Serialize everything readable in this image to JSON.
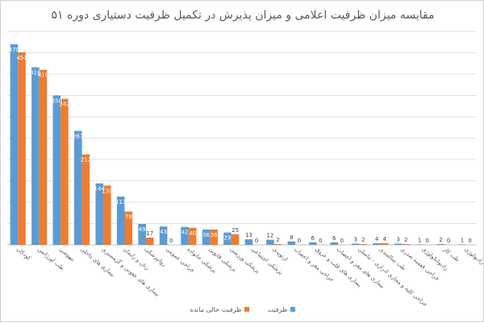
{
  "chart_data": {
    "type": "bar",
    "title": "مقایسه میزان ظرفیت اعلامی و میزان پذیرش در تکمیل ظرفیت دستیاری دوره ۵۱",
    "categories": [
      "کودکان",
      "طب اورژانس",
      "بیهوشی",
      "بیماری های داخلی",
      "بیماری های عفونی و گرمسیری",
      "زنان و زایمان",
      "روانپزشکی",
      "جراحی عمومی",
      "پزشکی خانواده",
      "پزشکی قانونی",
      "پزشکی ورزشی",
      "پزشکی اجتماعی",
      "ارتوپدی",
      "جراحی مغز و اعصاب",
      "بیماری های قلب و عروق",
      "بیماری های مغز و اعصاب",
      "جراحی کلیه و مجاری ادراری - تناسلی",
      "طب سالمندی",
      "جراحی قفسه صدری",
      "رادیوانکولوژی",
      "طب کار",
      "رادیولوژی"
    ],
    "series": [
      {
        "name": "ظرفیت",
        "color": "#5b9bd5",
        "values": [
          470,
          416,
          350,
          267,
          144,
          113,
          49,
          43,
          42,
          36,
          29,
          13,
          12,
          8,
          6,
          6,
          3,
          4,
          3,
          1,
          2,
          1
        ]
      },
      {
        "name": "ظرفیت خالی مانده",
        "color": "#ed7d31",
        "values": [
          451,
          410,
          342,
          212,
          139,
          78,
          17,
          0,
          40,
          36,
          25,
          0,
          2,
          0,
          0,
          0,
          2,
          4,
          2,
          0,
          0,
          0
        ]
      }
    ],
    "ylim": [
      0,
      500
    ],
    "grid": true,
    "legend_position": "bottom"
  }
}
